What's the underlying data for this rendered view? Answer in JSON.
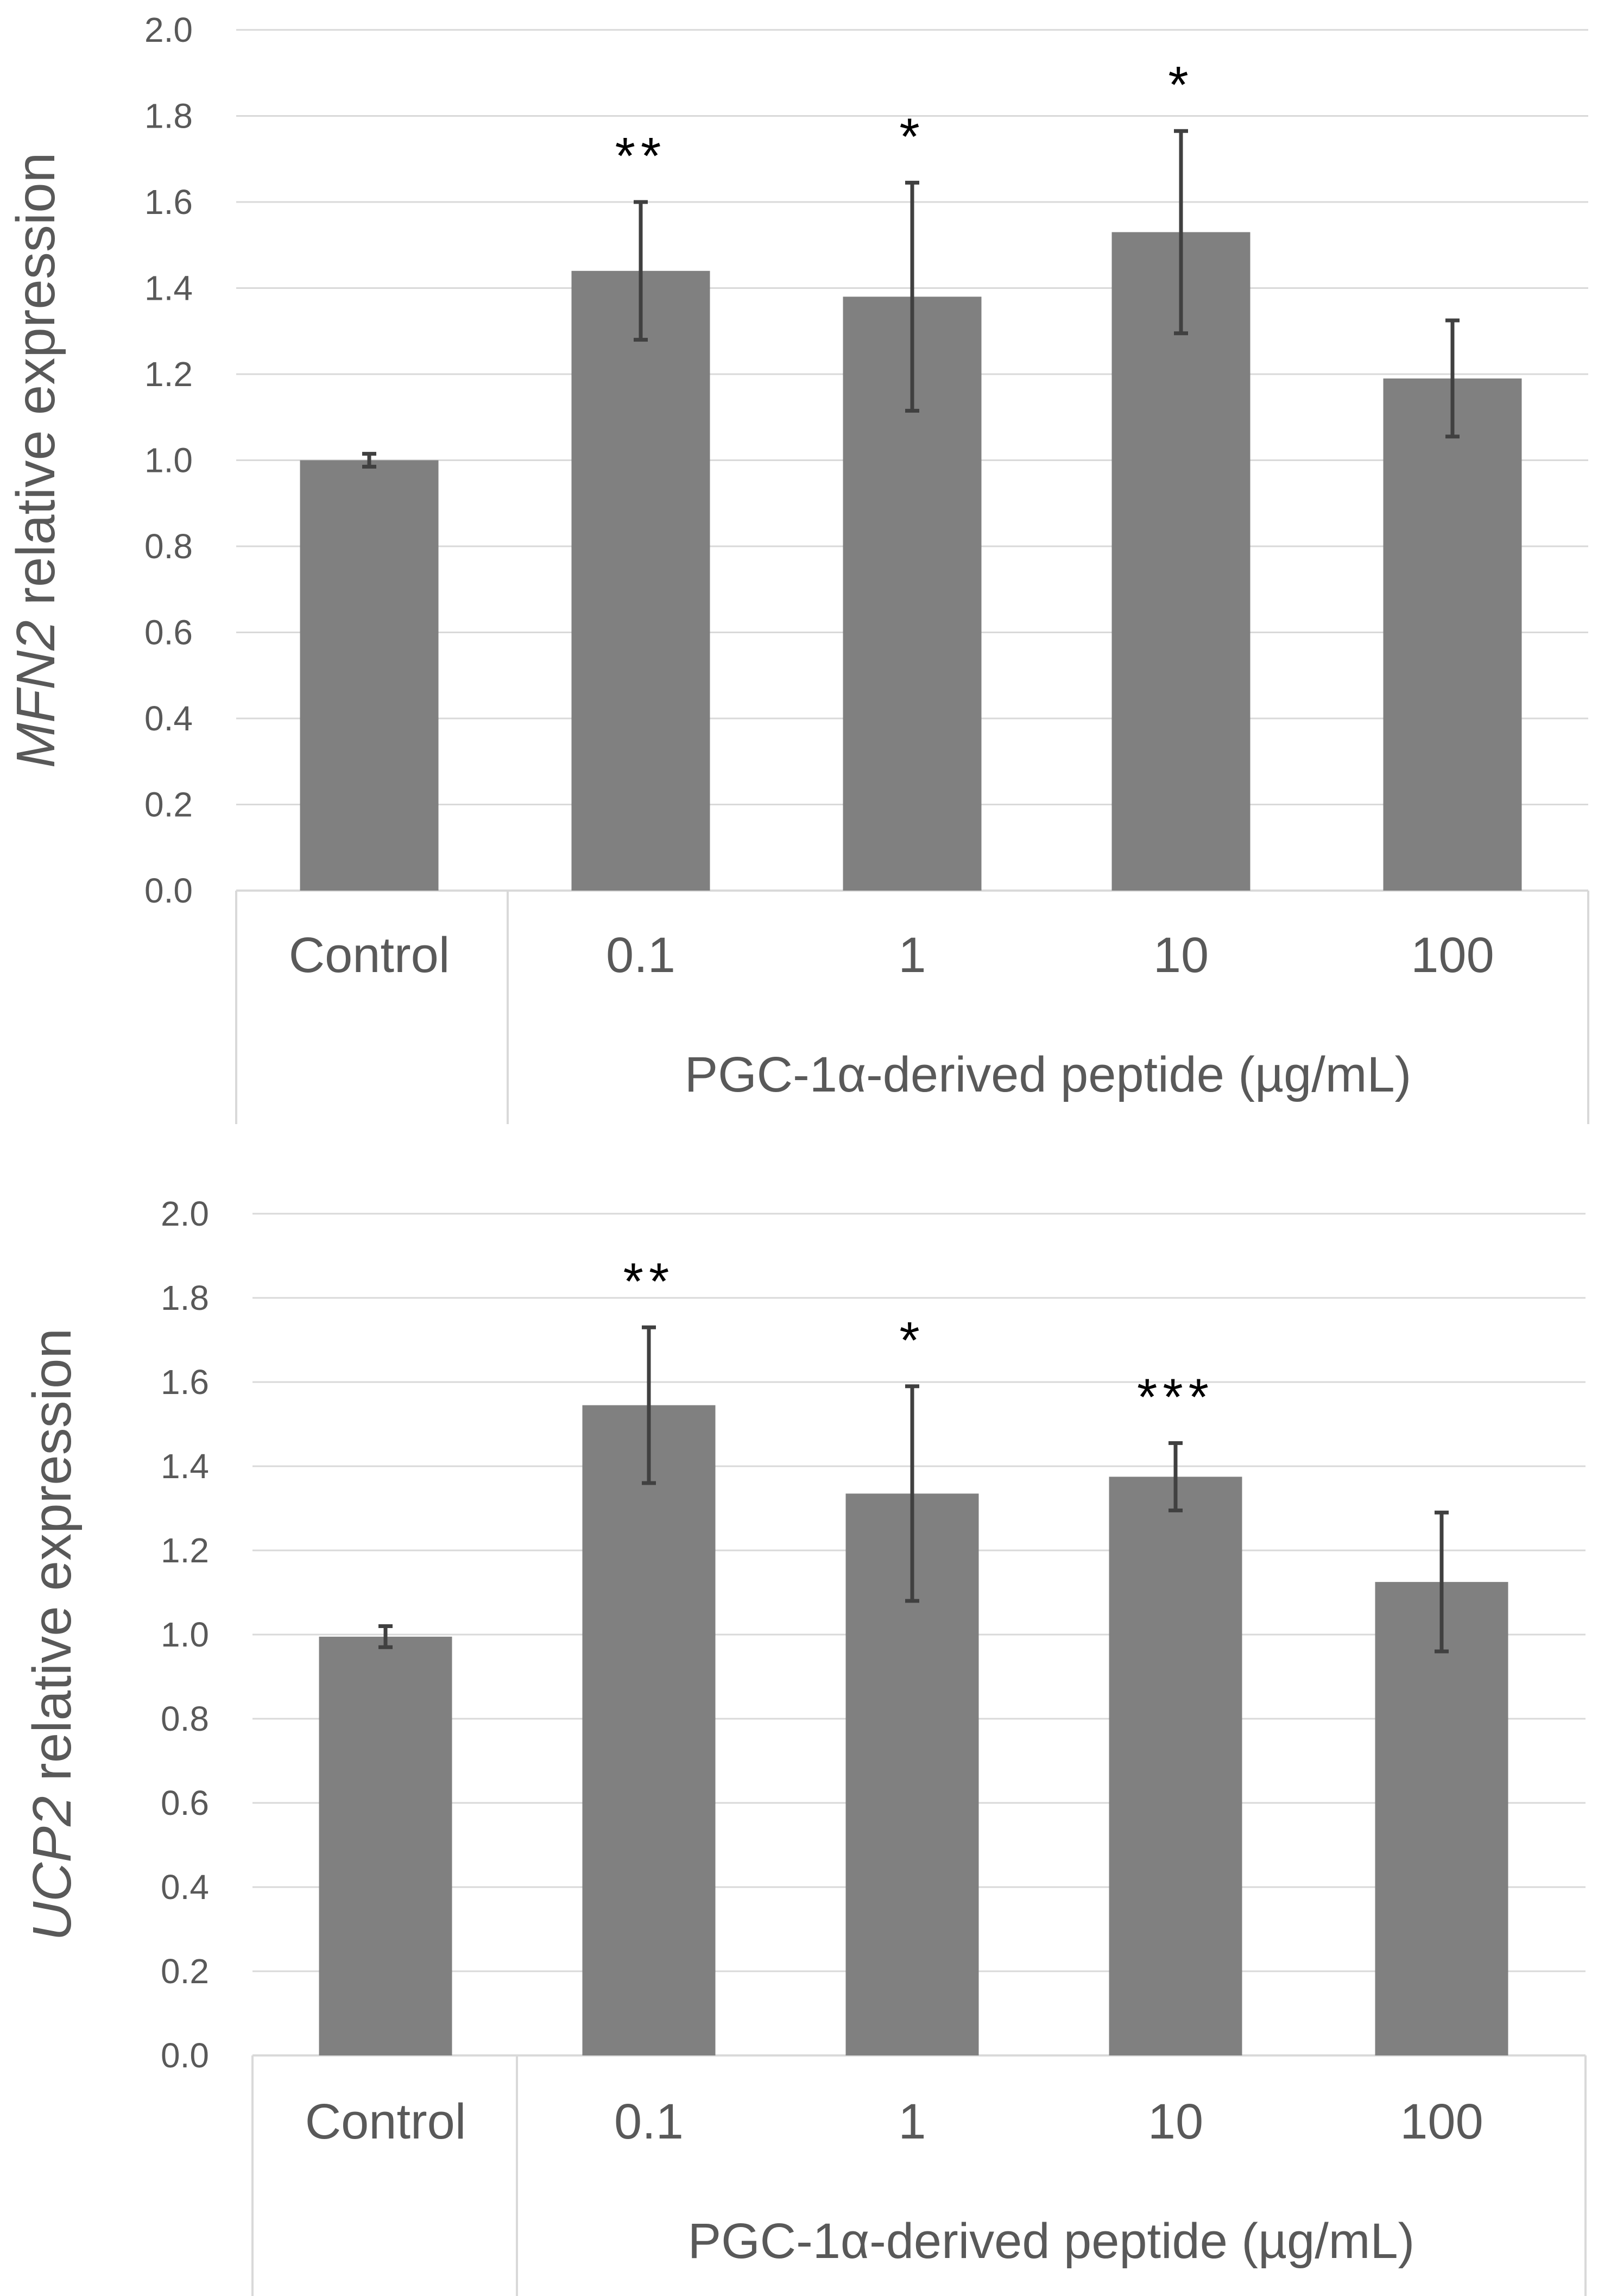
{
  "chart_data": [
    {
      "type": "bar",
      "ylabel_gene": "MFN2",
      "ylabel_rest": " relative expression",
      "group_label": "PGC-1α-derived peptide (µg/mL)",
      "categories": [
        "Control",
        "0.1",
        "1",
        "10",
        "100"
      ],
      "values": [
        1.0,
        1.44,
        1.38,
        1.53,
        1.19
      ],
      "error": [
        0.015,
        0.16,
        0.265,
        0.235,
        0.135
      ],
      "significance": [
        "",
        "**",
        "*",
        "*",
        ""
      ],
      "ylim": [
        0,
        2.0
      ],
      "yticks": [
        "0.0",
        "0.2",
        "0.4",
        "0.6",
        "0.8",
        "1.0",
        "1.2",
        "1.4",
        "1.6",
        "1.8",
        "2.0"
      ],
      "grid": true,
      "bar_color": "#808080"
    },
    {
      "type": "bar",
      "ylabel_gene": "UCP2",
      "ylabel_rest": " relative expression",
      "group_label": "PGC-1α-derived peptide (µg/mL)",
      "categories": [
        "Control",
        "0.1",
        "1",
        "10",
        "100"
      ],
      "values": [
        0.995,
        1.545,
        1.335,
        1.375,
        1.125
      ],
      "error": [
        0.025,
        0.185,
        0.255,
        0.08,
        0.165
      ],
      "significance": [
        "",
        "**",
        "*",
        "***",
        ""
      ],
      "ylim": [
        0,
        2.0
      ],
      "yticks": [
        "0.0",
        "0.2",
        "0.4",
        "0.6",
        "0.8",
        "1.0",
        "1.2",
        "1.4",
        "1.6",
        "1.8",
        "2.0"
      ],
      "grid": true,
      "bar_color": "#808080"
    }
  ]
}
